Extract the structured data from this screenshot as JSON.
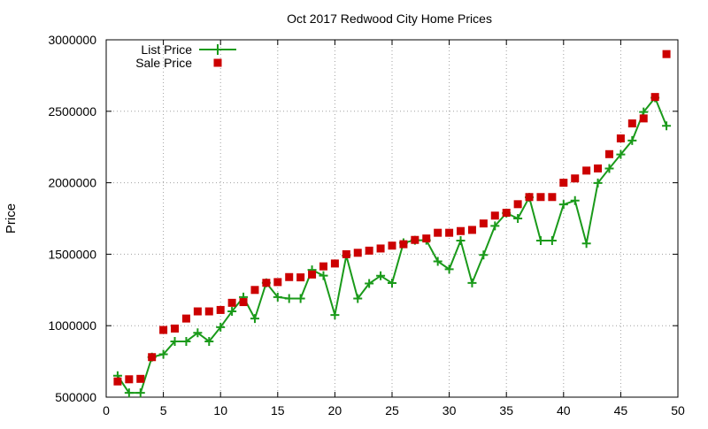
{
  "chart_data": {
    "type": "line",
    "title": "Oct 2017 Redwood City Home Prices",
    "xlabel": "",
    "ylabel": "Price",
    "xlim": [
      0,
      50
    ],
    "ylim": [
      500000,
      3000000
    ],
    "x_ticks": [
      0,
      5,
      10,
      15,
      20,
      25,
      30,
      35,
      40,
      45,
      50
    ],
    "y_ticks": [
      500000,
      1000000,
      1500000,
      2000000,
      2500000,
      3000000
    ],
    "grid": true,
    "legend_position": "top-left",
    "series": [
      {
        "name": "List Price",
        "style": "line-with-plus-markers",
        "color": "#1a9a1a",
        "x": [
          1,
          2,
          3,
          4,
          5,
          6,
          7,
          8,
          9,
          10,
          11,
          12,
          13,
          14,
          15,
          16,
          17,
          18,
          19,
          20,
          21,
          22,
          23,
          24,
          25,
          26,
          27,
          28,
          29,
          30,
          31,
          32,
          33,
          34,
          35,
          36,
          37,
          38,
          39,
          40,
          41,
          42,
          43,
          44,
          45,
          46,
          47,
          48,
          49
        ],
        "values": [
          650000,
          530000,
          530000,
          780000,
          800000,
          890000,
          890000,
          950000,
          890000,
          990000,
          1100000,
          1200000,
          1050000,
          1300000,
          1200000,
          1190000,
          1190000,
          1390000,
          1350000,
          1075000,
          1490000,
          1190000,
          1295000,
          1349000,
          1298000,
          1580000,
          1598000,
          1598000,
          1450000,
          1395000,
          1595000,
          1299000,
          1495000,
          1698000,
          1788000,
          1750000,
          1898000,
          1595000,
          1595000,
          1848000,
          1875000,
          1575000,
          1998000,
          2100000,
          2198000,
          2295000,
          2495000,
          2595000,
          2398000
        ]
      },
      {
        "name": "Sale Price",
        "style": "square-markers",
        "color": "#cc0000",
        "x": [
          1,
          2,
          3,
          4,
          5,
          6,
          7,
          8,
          9,
          10,
          11,
          12,
          13,
          14,
          15,
          16,
          17,
          18,
          19,
          20,
          21,
          22,
          23,
          24,
          25,
          26,
          27,
          28,
          29,
          30,
          31,
          32,
          33,
          34,
          35,
          36,
          37,
          38,
          39,
          40,
          41,
          42,
          43,
          44,
          45,
          46,
          47,
          48,
          49
        ],
        "values": [
          610000,
          625000,
          628000,
          780000,
          970000,
          980000,
          1050000,
          1100000,
          1100000,
          1110000,
          1160000,
          1165000,
          1250000,
          1300000,
          1305000,
          1340000,
          1338000,
          1358000,
          1415000,
          1435000,
          1500000,
          1510000,
          1525000,
          1540000,
          1560000,
          1570000,
          1600000,
          1610000,
          1650000,
          1650000,
          1662000,
          1670000,
          1715000,
          1770000,
          1790000,
          1850000,
          1900000,
          1900000,
          1900000,
          2000000,
          2030000,
          2085000,
          2100000,
          2200000,
          2310000,
          2415000,
          2450000,
          2600000,
          2900000
        ]
      }
    ]
  }
}
